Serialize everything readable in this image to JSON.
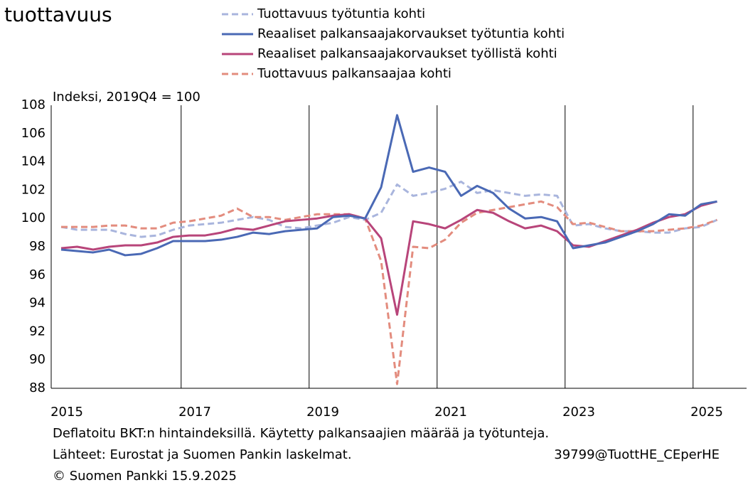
{
  "chart_data": {
    "type": "line",
    "title": "tuottavuus",
    "y_label": "Indeksi, 2019Q4 = 100",
    "categories": [
      "2015",
      null,
      null,
      null,
      null,
      null,
      null,
      null,
      "2017",
      null,
      null,
      null,
      null,
      null,
      null,
      null,
      "2019",
      null,
      null,
      null,
      null,
      null,
      null,
      null,
      "2021",
      null,
      null,
      null,
      null,
      null,
      null,
      null,
      "2023",
      null,
      null,
      null,
      null,
      null,
      null,
      null,
      "2025",
      null
    ],
    "ylim": [
      88,
      108
    ],
    "yticks": [
      88,
      90,
      92,
      94,
      96,
      98,
      100,
      102,
      104,
      106,
      108
    ],
    "xgrid": true,
    "series": [
      {
        "name": "Tuottavuus työtuntia kohti",
        "color": "#a9b5dd",
        "dashed": true,
        "values": [
          99.4,
          99.2,
          99.2,
          99.2,
          98.9,
          98.7,
          98.8,
          99.2,
          99.5,
          99.6,
          99.7,
          99.9,
          100.1,
          99.9,
          99.4,
          99.3,
          99.5,
          99.7,
          100.1,
          99.9,
          100.4,
          102.4,
          101.6,
          101.8,
          102.1,
          102.6,
          101.8,
          102.0,
          101.8,
          101.6,
          101.7,
          101.6,
          99.5,
          99.6,
          99.3,
          99.1,
          99.1,
          99.0,
          99.0,
          99.3,
          99.4,
          99.9
        ]
      },
      {
        "name": "Reaaliset palkansaajakorvaukset työtuntia kohti",
        "color": "#4a69b5",
        "dashed": false,
        "values": [
          97.8,
          97.7,
          97.6,
          97.8,
          97.4,
          97.5,
          97.9,
          98.4,
          98.4,
          98.4,
          98.5,
          98.7,
          99.0,
          98.9,
          99.1,
          99.2,
          99.3,
          100.1,
          100.2,
          100.0,
          102.2,
          107.3,
          103.3,
          103.6,
          103.3,
          101.6,
          102.3,
          101.8,
          100.7,
          100.0,
          100.1,
          99.8,
          97.9,
          98.1,
          98.3,
          98.7,
          99.1,
          99.6,
          100.3,
          100.2,
          101.0,
          101.2
        ]
      },
      {
        "name": "Reaaliset palkansaajakorvaukset työllistä kohti",
        "color": "#b8457a",
        "dashed": false,
        "values": [
          97.9,
          98.0,
          97.8,
          98.0,
          98.1,
          98.1,
          98.3,
          98.7,
          98.8,
          98.8,
          99.0,
          99.3,
          99.2,
          99.5,
          99.8,
          99.9,
          100.0,
          100.2,
          100.3,
          100.0,
          98.6,
          93.2,
          99.8,
          99.6,
          99.3,
          99.9,
          100.6,
          100.4,
          99.8,
          99.3,
          99.5,
          99.1,
          98.1,
          98.0,
          98.4,
          98.8,
          99.2,
          99.7,
          100.1,
          100.3,
          100.9,
          101.2
        ]
      },
      {
        "name": "Tuottavuus palkansaajaa kohti",
        "color": "#e38c7e",
        "dashed": true,
        "values": [
          99.4,
          99.4,
          99.4,
          99.5,
          99.5,
          99.3,
          99.3,
          99.7,
          99.8,
          100.0,
          100.2,
          100.7,
          100.1,
          100.1,
          99.9,
          100.1,
          100.3,
          100.3,
          100.3,
          100.0,
          97.0,
          88.3,
          98.0,
          97.9,
          98.5,
          99.7,
          100.4,
          100.6,
          100.8,
          101.0,
          101.2,
          100.8,
          99.6,
          99.7,
          99.4,
          99.1,
          99.1,
          99.1,
          99.2,
          99.3,
          99.5,
          99.9
        ]
      }
    ],
    "notes": [
      "Deflatoitu BKT:n hintaindeksillä. Käytetty palkansaajien määrää ja työtunteja.",
      "Lähteet: Eurostat ja Suomen Pankin laskelmat."
    ],
    "code": "39799@TuottHE_CEperHE",
    "copyright": "© Suomen Pankki 15.9.2025"
  }
}
